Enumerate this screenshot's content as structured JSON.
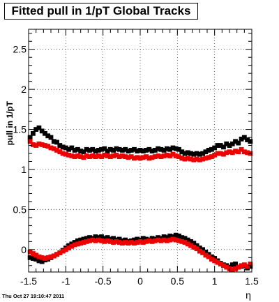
{
  "title": "Fitted pull in 1/pT  Global Tracks",
  "footer": "Thu Oct 27 19:10:47 2011",
  "chart_data": {
    "type": "scatter",
    "xlabel": "η",
    "ylabel": "pull in 1/pT",
    "xlim": [
      -1.5,
      1.5
    ],
    "ylim": [
      -0.28,
      2.75
    ],
    "x_ticks": [
      "-1.5",
      "-1",
      "-0.5",
      "0",
      "0.5",
      "1",
      "1.5"
    ],
    "y_ticks": [
      "0",
      "0.5",
      "1",
      "1.5",
      "2",
      "2.5"
    ],
    "grid": true,
    "series": [
      {
        "color": "#000000",
        "x": [
          -1.48,
          -1.44,
          -1.4,
          -1.36,
          -1.32,
          -1.28,
          -1.24,
          -1.2,
          -1.16,
          -1.12,
          -1.08,
          -1.04,
          -1.0,
          -0.96,
          -0.92,
          -0.88,
          -0.84,
          -0.8,
          -0.76,
          -0.72,
          -0.68,
          -0.64,
          -0.6,
          -0.56,
          -0.52,
          -0.48,
          -0.44,
          -0.4,
          -0.36,
          -0.32,
          -0.28,
          -0.24,
          -0.2,
          -0.16,
          -0.12,
          -0.08,
          -0.04,
          0.0,
          0.04,
          0.08,
          0.12,
          0.16,
          0.2,
          0.24,
          0.28,
          0.32,
          0.36,
          0.4,
          0.44,
          0.48,
          0.52,
          0.56,
          0.6,
          0.64,
          0.68,
          0.72,
          0.76,
          0.8,
          0.84,
          0.88,
          0.92,
          0.96,
          1.0,
          1.04,
          1.08,
          1.12,
          1.16,
          1.2,
          1.24,
          1.28,
          1.32,
          1.36,
          1.4,
          1.44,
          1.48
        ],
        "y": [
          1.4,
          1.45,
          1.5,
          1.52,
          1.48,
          1.45,
          1.42,
          1.4,
          1.35,
          1.34,
          1.3,
          1.28,
          1.27,
          1.25,
          1.27,
          1.24,
          1.25,
          1.23,
          1.22,
          1.25,
          1.24,
          1.25,
          1.23,
          1.24,
          1.25,
          1.26,
          1.23,
          1.25,
          1.24,
          1.26,
          1.25,
          1.24,
          1.25,
          1.23,
          1.24,
          1.25,
          1.23,
          1.24,
          1.23,
          1.24,
          1.25,
          1.23,
          1.24,
          1.26,
          1.25,
          1.24,
          1.26,
          1.25,
          1.27,
          1.26,
          1.25,
          1.22,
          1.2,
          1.21,
          1.2,
          1.19,
          1.2,
          1.19,
          1.2,
          1.22,
          1.24,
          1.25,
          1.27,
          1.3,
          1.3,
          1.28,
          1.32,
          1.3,
          1.32,
          1.35,
          1.33,
          1.38,
          1.4,
          1.37,
          1.35
        ]
      },
      {
        "color": "#ee0000",
        "x": [
          -1.48,
          -1.44,
          -1.4,
          -1.36,
          -1.32,
          -1.28,
          -1.24,
          -1.2,
          -1.16,
          -1.12,
          -1.08,
          -1.04,
          -1.0,
          -0.96,
          -0.92,
          -0.88,
          -0.84,
          -0.8,
          -0.76,
          -0.72,
          -0.68,
          -0.64,
          -0.6,
          -0.56,
          -0.52,
          -0.48,
          -0.44,
          -0.4,
          -0.36,
          -0.32,
          -0.28,
          -0.24,
          -0.2,
          -0.16,
          -0.12,
          -0.08,
          -0.04,
          0.0,
          0.04,
          0.08,
          0.12,
          0.16,
          0.2,
          0.24,
          0.28,
          0.32,
          0.36,
          0.4,
          0.44,
          0.48,
          0.52,
          0.56,
          0.6,
          0.64,
          0.68,
          0.72,
          0.76,
          0.8,
          0.84,
          0.88,
          0.92,
          0.96,
          1.0,
          1.04,
          1.08,
          1.12,
          1.16,
          1.2,
          1.24,
          1.28,
          1.32,
          1.36,
          1.4,
          1.44,
          1.48
        ],
        "y": [
          1.35,
          1.31,
          1.3,
          1.32,
          1.31,
          1.3,
          1.29,
          1.27,
          1.26,
          1.24,
          1.22,
          1.2,
          1.19,
          1.18,
          1.17,
          1.16,
          1.17,
          1.16,
          1.15,
          1.17,
          1.16,
          1.17,
          1.16,
          1.17,
          1.16,
          1.18,
          1.17,
          1.16,
          1.17,
          1.18,
          1.16,
          1.17,
          1.16,
          1.15,
          1.16,
          1.14,
          1.15,
          1.14,
          1.15,
          1.16,
          1.14,
          1.15,
          1.16,
          1.17,
          1.16,
          1.17,
          1.18,
          1.17,
          1.19,
          1.17,
          1.16,
          1.14,
          1.13,
          1.14,
          1.13,
          1.12,
          1.13,
          1.12,
          1.13,
          1.14,
          1.15,
          1.16,
          1.18,
          1.2,
          1.2,
          1.19,
          1.21,
          1.22,
          1.21,
          1.23,
          1.22,
          1.25,
          1.22,
          1.21,
          1.2
        ]
      },
      {
        "color": "#000000",
        "x": [
          -1.48,
          -1.44,
          -1.4,
          -1.36,
          -1.32,
          -1.28,
          -1.24,
          -1.2,
          -1.16,
          -1.12,
          -1.08,
          -1.04,
          -1.0,
          -0.96,
          -0.92,
          -0.88,
          -0.84,
          -0.8,
          -0.76,
          -0.72,
          -0.68,
          -0.64,
          -0.6,
          -0.56,
          -0.52,
          -0.48,
          -0.44,
          -0.4,
          -0.36,
          -0.32,
          -0.28,
          -0.24,
          -0.2,
          -0.16,
          -0.12,
          -0.08,
          -0.04,
          0.0,
          0.04,
          0.08,
          0.12,
          0.16,
          0.2,
          0.24,
          0.28,
          0.32,
          0.36,
          0.4,
          0.44,
          0.48,
          0.52,
          0.56,
          0.6,
          0.64,
          0.68,
          0.72,
          0.76,
          0.8,
          0.84,
          0.88,
          0.92,
          0.96,
          1.0,
          1.04,
          1.08,
          1.12,
          1.16,
          1.2,
          1.24,
          1.28,
          1.32,
          1.36,
          1.4,
          1.44,
          1.48
        ],
        "y": [
          -0.1,
          -0.11,
          -0.12,
          -0.14,
          -0.15,
          -0.13,
          -0.12,
          -0.1,
          -0.08,
          -0.06,
          -0.04,
          -0.01,
          0.02,
          0.05,
          0.07,
          0.09,
          0.11,
          0.12,
          0.13,
          0.14,
          0.15,
          0.14,
          0.16,
          0.15,
          0.16,
          0.14,
          0.15,
          0.13,
          0.14,
          0.12,
          0.13,
          0.11,
          0.12,
          0.1,
          0.11,
          0.12,
          0.13,
          0.12,
          0.14,
          0.13,
          0.12,
          0.14,
          0.13,
          0.15,
          0.14,
          0.16,
          0.15,
          0.17,
          0.16,
          0.18,
          0.17,
          0.15,
          0.14,
          0.12,
          0.1,
          0.08,
          0.05,
          0.02,
          0.0,
          -0.03,
          -0.06,
          -0.09,
          -0.11,
          -0.14,
          -0.17,
          -0.19,
          -0.2,
          -0.22,
          -0.19,
          -0.18,
          -0.22,
          -0.21,
          -0.2,
          -0.23,
          -0.21
        ]
      },
      {
        "color": "#ee0000",
        "x": [
          -1.48,
          -1.44,
          -1.4,
          -1.36,
          -1.32,
          -1.28,
          -1.24,
          -1.2,
          -1.16,
          -1.12,
          -1.08,
          -1.04,
          -1.0,
          -0.96,
          -0.92,
          -0.88,
          -0.84,
          -0.8,
          -0.76,
          -0.72,
          -0.68,
          -0.64,
          -0.6,
          -0.56,
          -0.52,
          -0.48,
          -0.44,
          -0.4,
          -0.36,
          -0.32,
          -0.28,
          -0.24,
          -0.2,
          -0.16,
          -0.12,
          -0.08,
          -0.04,
          0.0,
          0.04,
          0.08,
          0.12,
          0.16,
          0.2,
          0.24,
          0.28,
          0.32,
          0.36,
          0.4,
          0.44,
          0.48,
          0.52,
          0.56,
          0.6,
          0.64,
          0.68,
          0.72,
          0.76,
          0.8,
          0.84,
          0.88,
          0.92,
          0.96,
          1.0,
          1.04,
          1.08,
          1.12,
          1.16,
          1.2,
          1.24,
          1.28,
          1.32,
          1.36,
          1.4,
          1.44,
          1.48
        ],
        "y": [
          -0.03,
          -0.05,
          -0.07,
          -0.09,
          -0.1,
          -0.11,
          -0.1,
          -0.09,
          -0.08,
          -0.06,
          -0.04,
          -0.02,
          0.0,
          0.02,
          0.04,
          0.06,
          0.07,
          0.08,
          0.09,
          0.1,
          0.11,
          0.12,
          0.11,
          0.12,
          0.11,
          0.1,
          0.11,
          0.1,
          0.09,
          0.1,
          0.09,
          0.08,
          0.09,
          0.08,
          0.09,
          0.08,
          0.09,
          0.1,
          0.09,
          0.1,
          0.11,
          0.1,
          0.11,
          0.12,
          0.11,
          0.12,
          0.11,
          0.12,
          0.13,
          0.12,
          0.11,
          0.1,
          0.09,
          0.07,
          0.05,
          0.03,
          0.01,
          -0.02,
          -0.04,
          -0.07,
          -0.09,
          -0.12,
          -0.14,
          -0.16,
          -0.18,
          -0.2,
          -0.22,
          -0.24,
          -0.25,
          -0.24,
          -0.22,
          -0.2,
          -0.19,
          -0.21,
          -0.18
        ]
      }
    ]
  }
}
